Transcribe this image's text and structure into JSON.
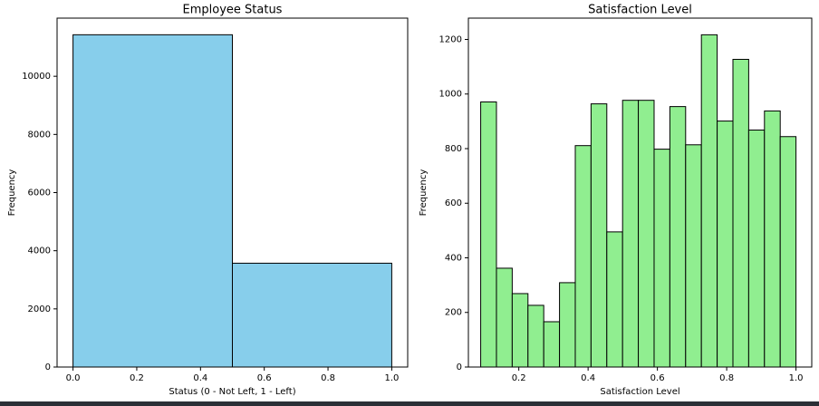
{
  "chart_data": [
    {
      "type": "histogram",
      "title": "Employee Status",
      "xlabel": "Status (0 - Not Left, 1 - Left)",
      "ylabel": "Frequency",
      "bins": [
        0,
        0.5,
        1
      ],
      "values": [
        11428,
        3571
      ],
      "color": "#87ceeb",
      "edgecolor": "#000000",
      "xlim": [
        -0.05,
        1.05
      ],
      "ylim": [
        0,
        12000
      ],
      "xticks": [
        {
          "value": 0,
          "label": "0.0"
        },
        0.2,
        0.4,
        0.6,
        0.8,
        {
          "value": 1,
          "label": "1.0"
        }
      ],
      "yticks": [
        0,
        2000,
        4000,
        6000,
        8000,
        10000
      ]
    },
    {
      "type": "histogram",
      "title": "Satisfaction Level",
      "xlabel": "Satisfaction Level",
      "ylabel": "Frequency",
      "bins": [
        0.09,
        0.1355,
        0.181,
        0.2265,
        0.272,
        0.3175,
        0.363,
        0.4085,
        0.454,
        0.4995,
        0.545,
        0.5905,
        0.636,
        0.6815,
        0.727,
        0.7725,
        0.818,
        0.8635,
        0.909,
        0.9545,
        1.0
      ],
      "values": [
        971,
        362,
        269,
        226,
        166,
        309,
        811,
        964,
        495,
        977,
        977,
        798,
        954,
        814,
        1217,
        901,
        1127,
        868,
        938,
        844
      ],
      "color": "#90ee90",
      "edgecolor": "#000000",
      "xlim": [
        0.0545,
        1.0455
      ],
      "ylim": [
        0,
        1278
      ],
      "xticks": [
        0.2,
        0.4,
        0.6,
        0.8,
        {
          "value": 1,
          "label": "1.0"
        }
      ],
      "yticks": [
        0,
        200,
        400,
        600,
        800,
        1000,
        1200
      ]
    }
  ]
}
